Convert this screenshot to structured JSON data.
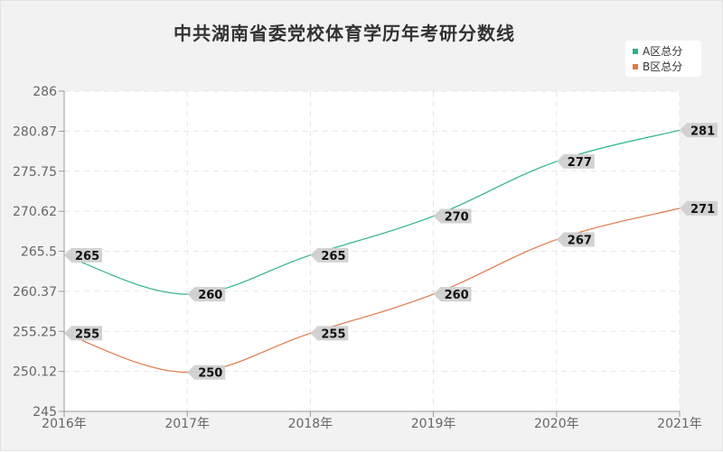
{
  "chart_data": {
    "type": "line",
    "title": "中共湖南省委党校体育学历年考研分数线",
    "xlabel": "",
    "ylabel": "",
    "categories": [
      "2016年",
      "2017年",
      "2018年",
      "2019年",
      "2020年",
      "2021年"
    ],
    "y_ticks": [
      "245",
      "250.12",
      "255.25",
      "260.37",
      "265.5",
      "270.62",
      "275.75",
      "280.87",
      "286"
    ],
    "ylim": [
      245,
      286
    ],
    "grid": true,
    "legend_position": "top-right",
    "series": [
      {
        "name": "A区总分",
        "color": "#2db38a",
        "values": [
          265,
          260,
          265,
          270,
          277,
          281
        ],
        "labels": [
          "265",
          "260",
          "265",
          "270",
          "277",
          "281"
        ]
      },
      {
        "name": "B区总分",
        "color": "#e0784a",
        "values": [
          255,
          250,
          255,
          260,
          267,
          271
        ],
        "labels": [
          "255",
          "250",
          "255",
          "260",
          "267",
          "271"
        ]
      }
    ]
  }
}
